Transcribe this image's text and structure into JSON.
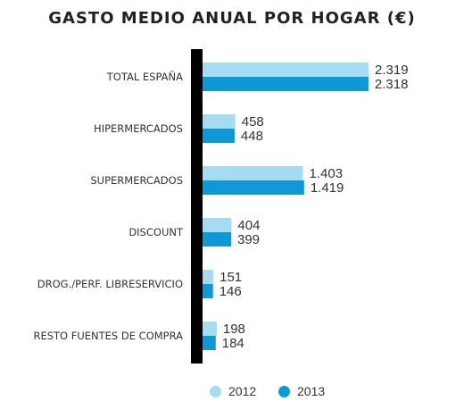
{
  "colors": {
    "series_2012": "#a6dcf2",
    "series_2013": "#0f97d6",
    "axis": "#000000"
  },
  "chart_data": {
    "type": "bar",
    "orientation": "horizontal",
    "title": "GASTO MEDIO ANUAL POR HOGAR (€)",
    "categories": [
      "TOTAL ESPAÑA",
      "HIPERMERCADOS",
      "SUPERMERCADOS",
      "DISCOUNT",
      "DROG./PERF. LIBRESERVICIO",
      "RESTO FUENTES DE COMPRA"
    ],
    "series": [
      {
        "name": "2012",
        "values": [
          2319,
          458,
          1403,
          404,
          151,
          198
        ],
        "labels": [
          "2.319",
          "458",
          "1.403",
          "404",
          "151",
          "198"
        ]
      },
      {
        "name": "2013",
        "values": [
          2318,
          448,
          1419,
          399,
          146,
          184
        ],
        "labels": [
          "2.318",
          "448",
          "1.419",
          "399",
          "146",
          "184"
        ]
      }
    ],
    "xlim": [
      0,
      2319
    ],
    "grid": false,
    "legend_position": "bottom"
  }
}
